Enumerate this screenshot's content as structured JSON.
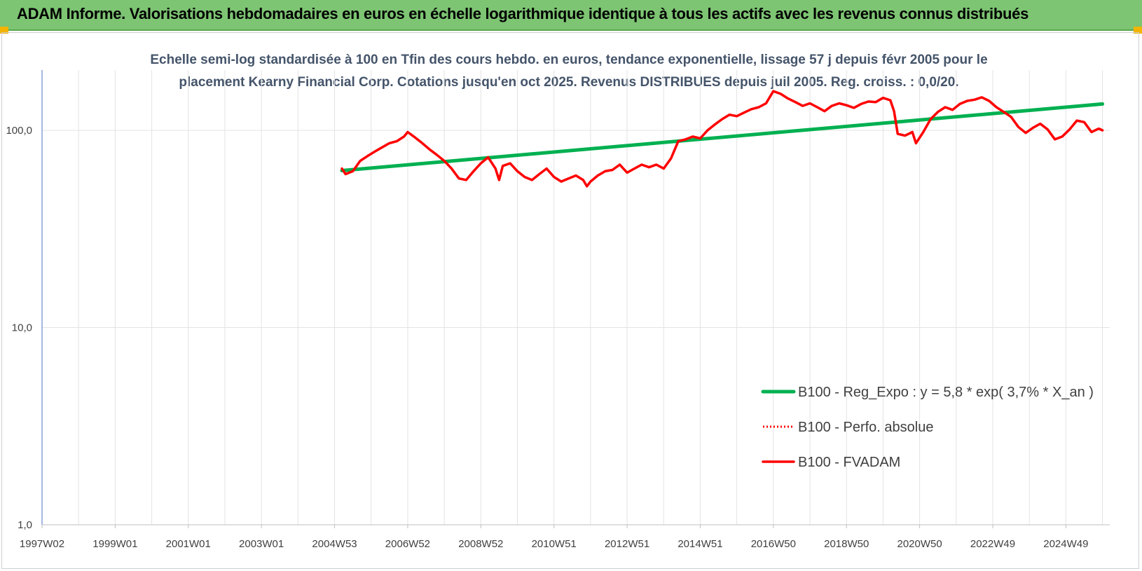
{
  "header": {
    "title": "ADAM Informe. Valorisations hebdomadaires en euros en échelle logarithmique identique à tous les actifs avec les revenus connus distribués"
  },
  "colors": {
    "header_bg": "#7dc473",
    "accent_corner": "#f2b400",
    "regression": "#00b050",
    "fvadam": "#ff0000",
    "subtitle": "#44546a"
  },
  "chart_data": {
    "type": "line",
    "title_lines": [
      "Echelle semi-log standardisée à 100 en Tfin des cours hebdo. en euros, tendance exponentielle, lissage 57 j depuis févr 2005 pour le",
      "placement Kearny Financial Corp. Cotations jusqu'en oct 2025. Revenus DISTRIBUES depuis juil 2005. Reg. croiss. : 0,0/20."
    ],
    "y_scale": "log",
    "ylim": [
      1,
      200
    ],
    "y_ticks": [
      {
        "value": 1,
        "label": "1,0"
      },
      {
        "value": 10,
        "label": "10,0"
      },
      {
        "value": 100,
        "label": "100,0"
      }
    ],
    "xlim": [
      1997.0,
      2026.2
    ],
    "x_ticks": [
      {
        "year": 1997.0,
        "label": "1997W02"
      },
      {
        "year": 1999.0,
        "label": "1999W01"
      },
      {
        "year": 2001.0,
        "label": "2001W01"
      },
      {
        "year": 2003.0,
        "label": "2003W01"
      },
      {
        "year": 2005.0,
        "label": "2004W53"
      },
      {
        "year": 2007.0,
        "label": "2006W52"
      },
      {
        "year": 2009.0,
        "label": "2008W52"
      },
      {
        "year": 2011.0,
        "label": "2010W51"
      },
      {
        "year": 2013.0,
        "label": "2012W51"
      },
      {
        "year": 2015.0,
        "label": "2014W51"
      },
      {
        "year": 2017.0,
        "label": "2016W50"
      },
      {
        "year": 2019.0,
        "label": "2018W50"
      },
      {
        "year": 2021.0,
        "label": "2020W50"
      },
      {
        "year": 2023.0,
        "label": "2022W49"
      },
      {
        "year": 2025.0,
        "label": "2024W49"
      }
    ],
    "grid": true,
    "legend_position": "right-bottom",
    "series": [
      {
        "name": "B100 - Reg_Expo : y = 5,8 * exp( 3,7% *  X_an )",
        "style": "solid-green",
        "points": [
          [
            2005.2,
            62.5
          ],
          [
            2026.0,
            136
          ]
        ]
      },
      {
        "name": "B100 - Perfo. absolue",
        "style": "dotted-red",
        "points": []
      },
      {
        "name": "B100 - FVADAM",
        "style": "solid-red",
        "points": [
          [
            2005.2,
            64
          ],
          [
            2005.3,
            60
          ],
          [
            2005.5,
            62
          ],
          [
            2005.7,
            70
          ],
          [
            2005.9,
            74
          ],
          [
            2006.1,
            78
          ],
          [
            2006.3,
            82
          ],
          [
            2006.5,
            86
          ],
          [
            2006.7,
            88
          ],
          [
            2006.9,
            93
          ],
          [
            2007.0,
            98
          ],
          [
            2007.2,
            92
          ],
          [
            2007.4,
            86
          ],
          [
            2007.6,
            80
          ],
          [
            2007.8,
            75
          ],
          [
            2008.0,
            70
          ],
          [
            2008.2,
            64
          ],
          [
            2008.4,
            57
          ],
          [
            2008.6,
            56
          ],
          [
            2008.8,
            62
          ],
          [
            2009.0,
            68
          ],
          [
            2009.2,
            73
          ],
          [
            2009.4,
            64
          ],
          [
            2009.5,
            56
          ],
          [
            2009.6,
            66
          ],
          [
            2009.8,
            68
          ],
          [
            2010.0,
            62
          ],
          [
            2010.2,
            58
          ],
          [
            2010.4,
            56
          ],
          [
            2010.6,
            60
          ],
          [
            2010.8,
            64
          ],
          [
            2011.0,
            58
          ],
          [
            2011.2,
            55
          ],
          [
            2011.4,
            57
          ],
          [
            2011.6,
            59
          ],
          [
            2011.8,
            56
          ],
          [
            2011.9,
            52
          ],
          [
            2012.0,
            55
          ],
          [
            2012.2,
            59
          ],
          [
            2012.4,
            62
          ],
          [
            2012.6,
            63
          ],
          [
            2012.8,
            67
          ],
          [
            2013.0,
            61
          ],
          [
            2013.2,
            64
          ],
          [
            2013.4,
            67
          ],
          [
            2013.6,
            65
          ],
          [
            2013.8,
            67
          ],
          [
            2014.0,
            64
          ],
          [
            2014.2,
            72
          ],
          [
            2014.4,
            88
          ],
          [
            2014.6,
            90
          ],
          [
            2014.8,
            93
          ],
          [
            2015.0,
            91
          ],
          [
            2015.2,
            100
          ],
          [
            2015.4,
            107
          ],
          [
            2015.6,
            114
          ],
          [
            2015.8,
            120
          ],
          [
            2016.0,
            118
          ],
          [
            2016.2,
            123
          ],
          [
            2016.4,
            128
          ],
          [
            2016.6,
            131
          ],
          [
            2016.8,
            137
          ],
          [
            2017.0,
            158
          ],
          [
            2017.2,
            153
          ],
          [
            2017.4,
            145
          ],
          [
            2017.6,
            139
          ],
          [
            2017.8,
            133
          ],
          [
            2018.0,
            137
          ],
          [
            2018.2,
            131
          ],
          [
            2018.4,
            125
          ],
          [
            2018.6,
            133
          ],
          [
            2018.8,
            137
          ],
          [
            2019.0,
            134
          ],
          [
            2019.2,
            130
          ],
          [
            2019.4,
            136
          ],
          [
            2019.6,
            140
          ],
          [
            2019.8,
            139
          ],
          [
            2020.0,
            146
          ],
          [
            2020.2,
            142
          ],
          [
            2020.3,
            125
          ],
          [
            2020.4,
            96
          ],
          [
            2020.6,
            94
          ],
          [
            2020.8,
            98
          ],
          [
            2020.9,
            86
          ],
          [
            2021.1,
            98
          ],
          [
            2021.3,
            114
          ],
          [
            2021.5,
            124
          ],
          [
            2021.7,
            131
          ],
          [
            2021.9,
            127
          ],
          [
            2022.1,
            136
          ],
          [
            2022.3,
            141
          ],
          [
            2022.5,
            143
          ],
          [
            2022.7,
            147
          ],
          [
            2022.9,
            141
          ],
          [
            2023.1,
            131
          ],
          [
            2023.3,
            124
          ],
          [
            2023.5,
            117
          ],
          [
            2023.7,
            104
          ],
          [
            2023.9,
            97
          ],
          [
            2024.1,
            103
          ],
          [
            2024.3,
            108
          ],
          [
            2024.5,
            101
          ],
          [
            2024.7,
            90
          ],
          [
            2024.9,
            93
          ],
          [
            2025.1,
            101
          ],
          [
            2025.3,
            112
          ],
          [
            2025.5,
            110
          ],
          [
            2025.7,
            98
          ],
          [
            2025.9,
            102
          ],
          [
            2026.0,
            100
          ]
        ]
      }
    ]
  }
}
